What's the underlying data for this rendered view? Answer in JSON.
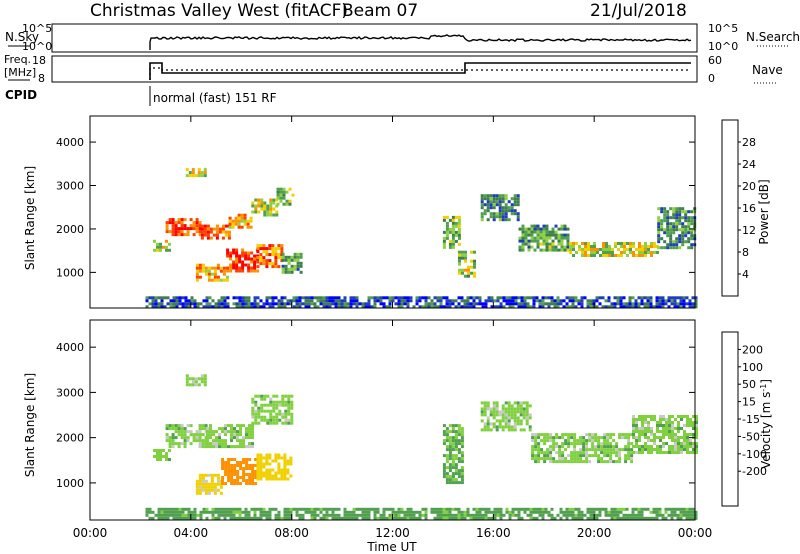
{
  "header": {
    "title": "Christmas Valley West (fitACF)",
    "beam": "Beam 07",
    "date": "21/Jul/2018"
  },
  "noise_panel": {
    "left_label": "N.Sky",
    "right_label": "N.Search",
    "left_ticks": [
      "10^5",
      "10^0"
    ],
    "right_ticks": [
      "10^5",
      "10^0"
    ]
  },
  "freq_panel": {
    "left_label_line1": "Freq.",
    "left_label_line2": "[MHz]",
    "right_label": "Nave",
    "left_ticks": [
      "18",
      "8"
    ],
    "right_ticks": [
      "60",
      "0"
    ]
  },
  "cpid": {
    "label": "CPID",
    "value": "normal (fast) 151 RF"
  },
  "colors": {
    "power": [
      "#0000ff",
      "#1f3fb8",
      "#3f7f4f",
      "#50a050",
      "#90d040",
      "#f0d000",
      "#ff9000",
      "#ff4000",
      "#ff0000"
    ],
    "velocity": [
      "#0000ff",
      "#1f3fb8",
      "#3f7f4f",
      "#50a050",
      "#80d040",
      "#c8c8c8",
      "#f0d000",
      "#ff9000",
      "#ff5000",
      "#ff0000"
    ]
  },
  "chart_data": [
    {
      "type": "heatmap",
      "name": "power",
      "xlabel": "",
      "ylabel": "Slant Range [km]",
      "xlim": [
        "00:00",
        "24:00"
      ],
      "ylim": [
        180,
        4600
      ],
      "yticks": [
        "1000",
        "2000",
        "3000",
        "4000"
      ],
      "colorbar": {
        "label": "Power [dB]",
        "ticks": [
          "4",
          "8",
          "12",
          "16",
          "20",
          "24",
          "28"
        ],
        "range": [
          0,
          32
        ]
      },
      "regions": [
        {
          "t0": 2.5,
          "t1": 3.1,
          "r0": 1500,
          "r1": 1750,
          "value": 16
        },
        {
          "t0": 3.0,
          "t1": 4.4,
          "r0": 1850,
          "r1": 2250,
          "value": 28
        },
        {
          "t0": 4.4,
          "t1": 5.5,
          "r0": 1800,
          "r1": 2100,
          "value": 26
        },
        {
          "t0": 5.5,
          "t1": 6.4,
          "r0": 2050,
          "r1": 2350,
          "value": 22
        },
        {
          "t0": 6.4,
          "t1": 7.4,
          "r0": 2350,
          "r1": 2700,
          "value": 18
        },
        {
          "t0": 7.4,
          "t1": 8.0,
          "r0": 2600,
          "r1": 2950,
          "value": 14
        },
        {
          "t0": 3.8,
          "t1": 4.6,
          "r0": 3200,
          "r1": 3400,
          "value": 18
        },
        {
          "t0": 4.2,
          "t1": 5.4,
          "r0": 800,
          "r1": 1200,
          "value": 22
        },
        {
          "t0": 5.4,
          "t1": 6.6,
          "r0": 1000,
          "r1": 1550,
          "value": 28
        },
        {
          "t0": 6.6,
          "t1": 7.6,
          "r0": 1100,
          "r1": 1650,
          "value": 24
        },
        {
          "t0": 7.6,
          "t1": 8.4,
          "r0": 1000,
          "r1": 1450,
          "value": 12
        },
        {
          "t0": 14.0,
          "t1": 14.6,
          "r0": 1600,
          "r1": 2300,
          "value": 14
        },
        {
          "t0": 14.6,
          "t1": 15.2,
          "r0": 900,
          "r1": 1500,
          "value": 16
        },
        {
          "t0": 15.5,
          "t1": 17.0,
          "r0": 2200,
          "r1": 2800,
          "value": 10
        },
        {
          "t0": 17.0,
          "t1": 19.0,
          "r0": 1500,
          "r1": 2100,
          "value": 12
        },
        {
          "t0": 19.0,
          "t1": 22.5,
          "r0": 1400,
          "r1": 1700,
          "value": 18
        },
        {
          "t0": 22.5,
          "t1": 24.0,
          "r0": 1600,
          "r1": 2500,
          "value": 10
        },
        {
          "t0": 2.2,
          "t1": 24.0,
          "r0": 200,
          "r1": 450,
          "value": 6
        }
      ]
    },
    {
      "type": "heatmap",
      "name": "velocity",
      "xlabel": "Time UT",
      "ylabel": "Slant Range [km]",
      "xlim": [
        "00:00",
        "24:00"
      ],
      "ylim": [
        180,
        4600
      ],
      "xticks": [
        "00:00",
        "04:00",
        "08:00",
        "12:00",
        "16:00",
        "20:00",
        "00:00"
      ],
      "yticks": [
        "1000",
        "2000",
        "3000",
        "4000"
      ],
      "colorbar": {
        "label_main": "Velocity [m s",
        "label_sup": "-1",
        "label_end": "]",
        "ticks": [
          "-200",
          "-100",
          "-50",
          "-15",
          "15",
          "50",
          "100",
          "200"
        ]
      },
      "regions": [
        {
          "t0": 2.5,
          "t1": 3.1,
          "r0": 1500,
          "r1": 1750,
          "value": 0
        },
        {
          "t0": 3.0,
          "t1": 4.6,
          "r0": 1800,
          "r1": 2300,
          "value": 0
        },
        {
          "t0": 4.6,
          "t1": 6.4,
          "r0": 1800,
          "r1": 2300,
          "value": 0
        },
        {
          "t0": 6.4,
          "t1": 8.0,
          "r0": 2300,
          "r1": 2950,
          "value": 0
        },
        {
          "t0": 3.8,
          "t1": 4.6,
          "r0": 3200,
          "r1": 3400,
          "value": 0
        },
        {
          "t0": 4.2,
          "t1": 5.2,
          "r0": 800,
          "r1": 1200,
          "value": -60
        },
        {
          "t0": 5.2,
          "t1": 6.6,
          "r0": 1000,
          "r1": 1550,
          "value": -150
        },
        {
          "t0": 6.6,
          "t1": 8.0,
          "r0": 1100,
          "r1": 1650,
          "value": -80
        },
        {
          "t0": 14.0,
          "t1": 14.8,
          "r0": 1000,
          "r1": 2300,
          "value": 20
        },
        {
          "t0": 15.5,
          "t1": 17.5,
          "r0": 2200,
          "r1": 2800,
          "value": 0
        },
        {
          "t0": 17.5,
          "t1": 21.5,
          "r0": 1500,
          "r1": 2100,
          "value": 0
        },
        {
          "t0": 21.5,
          "t1": 24.0,
          "r0": 1700,
          "r1": 2500,
          "value": 0
        },
        {
          "t0": 2.2,
          "t1": 24.0,
          "r0": 200,
          "r1": 450,
          "value": 30
        }
      ]
    }
  ]
}
